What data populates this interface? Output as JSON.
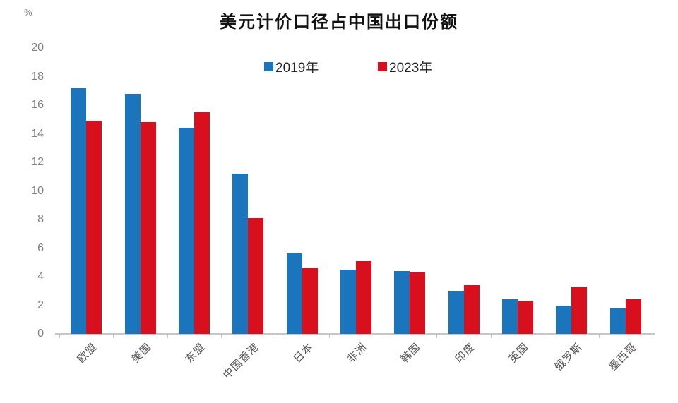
{
  "chart_data": {
    "type": "bar",
    "title": "美元计价口径占中国出口份额",
    "unit_label": "%",
    "categories": [
      "欧盟",
      "美国",
      "东盟",
      "中国香港",
      "日本",
      "非洲",
      "韩国",
      "印度",
      "英国",
      "俄罗斯",
      "墨西哥"
    ],
    "series": [
      {
        "name": "2019年",
        "color": "#1B75BC",
        "values": [
          17.2,
          16.8,
          14.4,
          11.2,
          5.7,
          4.5,
          4.4,
          3.0,
          2.4,
          2.0,
          1.8
        ]
      },
      {
        "name": "2023年",
        "color": "#D8101E",
        "values": [
          14.9,
          14.8,
          15.5,
          8.1,
          4.6,
          5.1,
          4.3,
          3.4,
          2.3,
          3.3,
          2.4
        ]
      }
    ],
    "ylim": [
      0,
      20
    ],
    "ytick_step": 2,
    "grid": false,
    "legend_position": "top",
    "colors": {
      "background": "#ffffff",
      "axis": "#c6c6c6",
      "y_tick_text": "#7f7f7f",
      "x_tick_text": "#545454",
      "title_text": "#111111",
      "legend_text": "#262626"
    }
  }
}
